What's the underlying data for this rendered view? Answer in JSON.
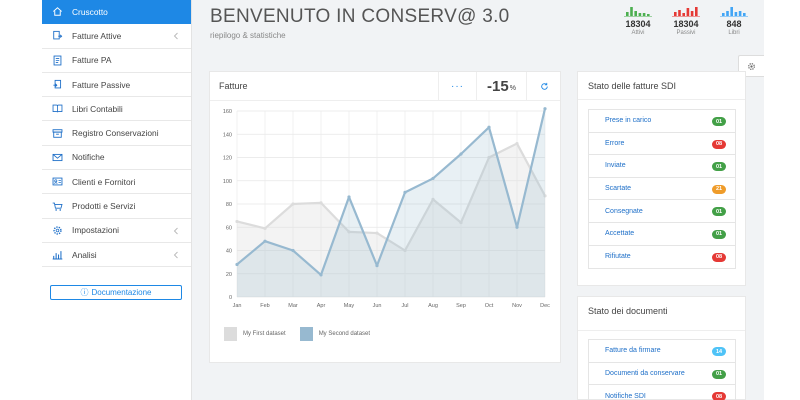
{
  "colors": {
    "accent": "#1e88e5",
    "series1": "#dcdcdc",
    "series2": "#97b9d0",
    "stat_green": "#4caf50",
    "stat_red": "#e53935",
    "stat_blue": "#42a5f5",
    "badge_green": "#43a047",
    "badge_red": "#e53935",
    "badge_orange": "#ef9c2a",
    "badge_cyan": "#4fc3f7"
  },
  "sidebar": {
    "items": [
      {
        "label": "Cruscotto",
        "icon": "home-icon",
        "active": true,
        "chevron": false
      },
      {
        "label": "Fatture Attive",
        "icon": "invoice-out-icon",
        "active": false,
        "chevron": true
      },
      {
        "label": "Fatture PA",
        "icon": "document-icon",
        "active": false,
        "chevron": false
      },
      {
        "label": "Fatture Passive",
        "icon": "invoice-in-icon",
        "active": false,
        "chevron": false
      },
      {
        "label": "Libri Contabili",
        "icon": "book-icon",
        "active": false,
        "chevron": false
      },
      {
        "label": "Registro Conservazioni",
        "icon": "archive-icon",
        "active": false,
        "chevron": false
      },
      {
        "label": "Notifiche",
        "icon": "envelope-icon",
        "active": false,
        "chevron": false
      },
      {
        "label": "Clienti e Fornitori",
        "icon": "contacts-icon",
        "active": false,
        "chevron": false
      },
      {
        "label": "Prodotti e Servizi",
        "icon": "cart-icon",
        "active": false,
        "chevron": false
      },
      {
        "label": "Impostazioni",
        "icon": "gear-icon",
        "active": false,
        "chevron": true
      },
      {
        "label": "Analisi",
        "icon": "bar-chart-icon",
        "active": false,
        "chevron": true
      }
    ],
    "doc_button": "Documentazione"
  },
  "header": {
    "title": "BENVENUTO IN CONSERV@ 3.0",
    "subtitle": "riepilogo & statistiche"
  },
  "stats": [
    {
      "value": "18304",
      "label": "Attivi",
      "color": "#4caf50",
      "bars": [
        0.45,
        1.0,
        0.6,
        0.3,
        0.35,
        0.2
      ]
    },
    {
      "value": "18304",
      "label": "Passivi",
      "color": "#e53935",
      "bars": [
        0.4,
        0.7,
        0.35,
        0.85,
        0.5,
        1.0
      ]
    },
    {
      "value": "848",
      "label": "Libri",
      "color": "#42a5f5",
      "bars": [
        0.3,
        0.5,
        1.0,
        0.4,
        0.6,
        0.3
      ]
    }
  ],
  "chart_card": {
    "title": "Fatture",
    "more": "···",
    "percent": "-15",
    "percent_unit": "%"
  },
  "chart_data": {
    "type": "area",
    "categories": [
      "Jan",
      "Feb",
      "Mar",
      "Apr",
      "May",
      "Jun",
      "Jul",
      "Aug",
      "Sep",
      "Oct",
      "Nov",
      "Dec"
    ],
    "ylim": [
      0,
      160
    ],
    "yticks": [
      0,
      20,
      40,
      60,
      80,
      100,
      120,
      140,
      160
    ],
    "grid": true,
    "legend_position": "bottom-left",
    "series": [
      {
        "name": "My First dataset",
        "values": [
          65,
          59,
          80,
          81,
          56,
          55,
          40,
          84,
          64,
          120,
          132,
          87
        ]
      },
      {
        "name": "My Second dataset",
        "values": [
          28,
          48,
          40,
          19,
          86,
          27,
          90,
          102,
          123,
          146,
          60,
          162
        ]
      }
    ]
  },
  "sdi": {
    "title": "Stato delle fatture SDI",
    "items": [
      {
        "label": "Prese in carico",
        "count": "01",
        "color": "#43a047"
      },
      {
        "label": "Errore",
        "count": "08",
        "color": "#e53935"
      },
      {
        "label": "Inviate",
        "count": "01",
        "color": "#43a047"
      },
      {
        "label": "Scartate",
        "count": "21",
        "color": "#ef9c2a"
      },
      {
        "label": "Consegnate",
        "count": "01",
        "color": "#43a047"
      },
      {
        "label": "Accettate",
        "count": "01",
        "color": "#43a047"
      },
      {
        "label": "Rifiutate",
        "count": "08",
        "color": "#e53935"
      }
    ]
  },
  "docs": {
    "title": "Stato dei documenti",
    "items": [
      {
        "label": "Fatture da firmare",
        "count": "14",
        "color": "#4fc3f7"
      },
      {
        "label": "Documenti da conservare",
        "count": "01",
        "color": "#43a047"
      },
      {
        "label": "Notifiche SDI",
        "count": "08",
        "color": "#e53935"
      }
    ]
  }
}
